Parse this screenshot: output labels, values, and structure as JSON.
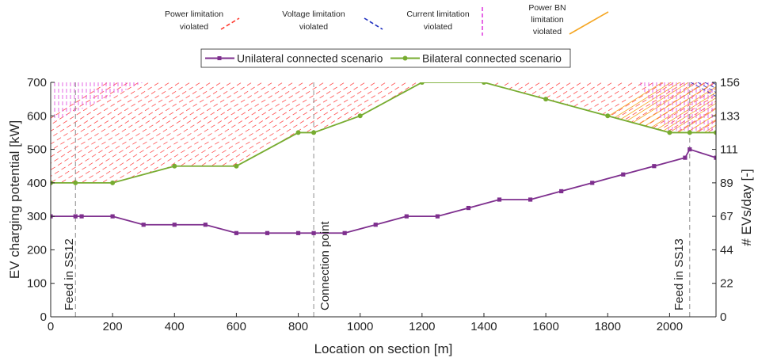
{
  "chart_data": {
    "type": "line",
    "xlabel": "Location on section [m]",
    "ylabel": "EV charging potential [kW]",
    "y2label": "# EVs/day [-]",
    "xlim": [
      0,
      2150
    ],
    "ylim": [
      0,
      700
    ],
    "x_ticks": [
      "0",
      "200",
      "400",
      "600",
      "800",
      "1000",
      "1200",
      "1400",
      "1600",
      "1800",
      "2000"
    ],
    "x_tick_values": [
      0,
      200,
      400,
      600,
      800,
      1000,
      1200,
      1400,
      1600,
      1800,
      2000
    ],
    "y_ticks": [
      "0",
      "100",
      "200",
      "300",
      "400",
      "500",
      "600",
      "700"
    ],
    "y_tick_values": [
      0,
      100,
      200,
      300,
      400,
      500,
      600,
      700
    ],
    "y2_ticks": [
      "0",
      "22",
      "44",
      "67",
      "89",
      "111",
      "133",
      "156"
    ],
    "series": [
      {
        "name": "Unilateral connected scenario",
        "color": "#7E2F8E",
        "marker": "square",
        "x": [
          0,
          80,
          100,
          200,
          300,
          400,
          500,
          600,
          700,
          800,
          850,
          950,
          1050,
          1150,
          1250,
          1350,
          1450,
          1550,
          1650,
          1750,
          1850,
          1950,
          2050,
          2065,
          2150
        ],
        "y": [
          300,
          300,
          300,
          300,
          275,
          275,
          275,
          250,
          250,
          250,
          250,
          250,
          275,
          300,
          300,
          325,
          350,
          350,
          375,
          400,
          425,
          450,
          475,
          500,
          475
        ]
      },
      {
        "name": "Bilateral connected scenario",
        "color": "#77AC30",
        "marker": "circle",
        "x": [
          0,
          80,
          200,
          400,
          600,
          800,
          850,
          1000,
          1200,
          1400,
          1600,
          1800,
          2000,
          2065,
          2150
        ],
        "y": [
          400,
          400,
          400,
          450,
          450,
          550,
          550,
          600,
          700,
          700,
          650,
          600,
          550,
          550,
          550
        ]
      }
    ],
    "violation_legend": [
      {
        "label_lines": [
          "Power limitation",
          "violated"
        ],
        "color": "#FF3B30",
        "style": "dashed-diagonal"
      },
      {
        "label_lines": [
          "Voltage limitation",
          "violated"
        ],
        "color": "#1F2FBF",
        "style": "dashed-diagonal"
      },
      {
        "label_lines": [
          "Current limitation",
          "violated"
        ],
        "color": "#E040E0",
        "style": "dashed-vertical"
      },
      {
        "label_lines": [
          "Power BN",
          "limitation",
          "violated"
        ],
        "color": "#F5A623",
        "style": "solid-diagonal"
      }
    ],
    "annotations": [
      {
        "text": "Feed in SS12",
        "x": 80
      },
      {
        "text": "Connection point",
        "x": 850
      },
      {
        "text": "Feed in SS13",
        "x": 2065
      }
    ],
    "legend_position": "top",
    "grid": false
  },
  "colors": {
    "axis": "#262626",
    "power_hatch": "#FF4A4A",
    "voltage_hatch": "#1F2FBF",
    "current_hatch": "#E040E0",
    "bn_hatch": "#F5A623",
    "annotation_line": "#8C8C8C"
  }
}
